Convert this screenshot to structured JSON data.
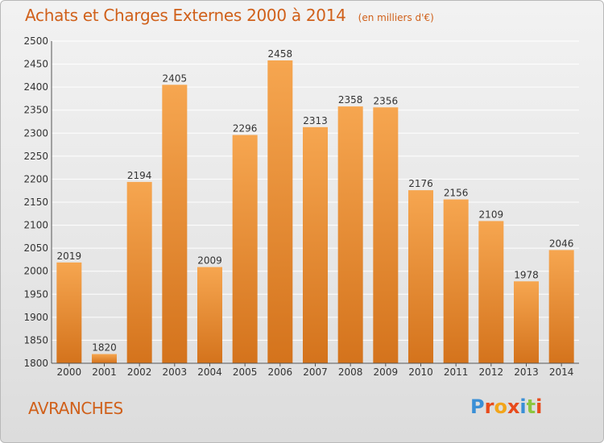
{
  "header": {
    "title": "Achats et Charges Externes 2000 à 2014",
    "unit": "(en milliers d'€)"
  },
  "footer": {
    "commune": "AVRANCHES",
    "logo_text": "Proxiti",
    "logo_letters": [
      "P",
      "r",
      "o",
      "x",
      "i",
      "t",
      "i"
    ],
    "logo_colors": [
      "#3a8fd6",
      "#e84b1c",
      "#f2a51a",
      "#e84b1c",
      "#3a8fd6",
      "#8cc63f",
      "#e84b1c"
    ]
  },
  "colors": {
    "accent": "#d0601a",
    "bar_top": "#f6a650",
    "bar_bottom": "#d4731c",
    "grid": "#ffffff"
  },
  "chart_data": {
    "type": "bar",
    "title": "Achats et Charges Externes 2000 à 2014",
    "subtitle": "(en milliers d'€)",
    "xlabel": "",
    "ylabel": "",
    "categories": [
      "2000",
      "2001",
      "2002",
      "2003",
      "2004",
      "2005",
      "2006",
      "2007",
      "2008",
      "2009",
      "2010",
      "2011",
      "2012",
      "2013",
      "2014"
    ],
    "values": [
      2019,
      1820,
      2194,
      2405,
      2009,
      2296,
      2458,
      2313,
      2358,
      2356,
      2176,
      2156,
      2109,
      1978,
      2046
    ],
    "ylim": [
      1800,
      2500
    ],
    "yticks": [
      1800,
      1850,
      1900,
      1950,
      2000,
      2050,
      2100,
      2150,
      2200,
      2250,
      2300,
      2350,
      2400,
      2450,
      2500
    ],
    "grid": true,
    "legend": "none"
  }
}
